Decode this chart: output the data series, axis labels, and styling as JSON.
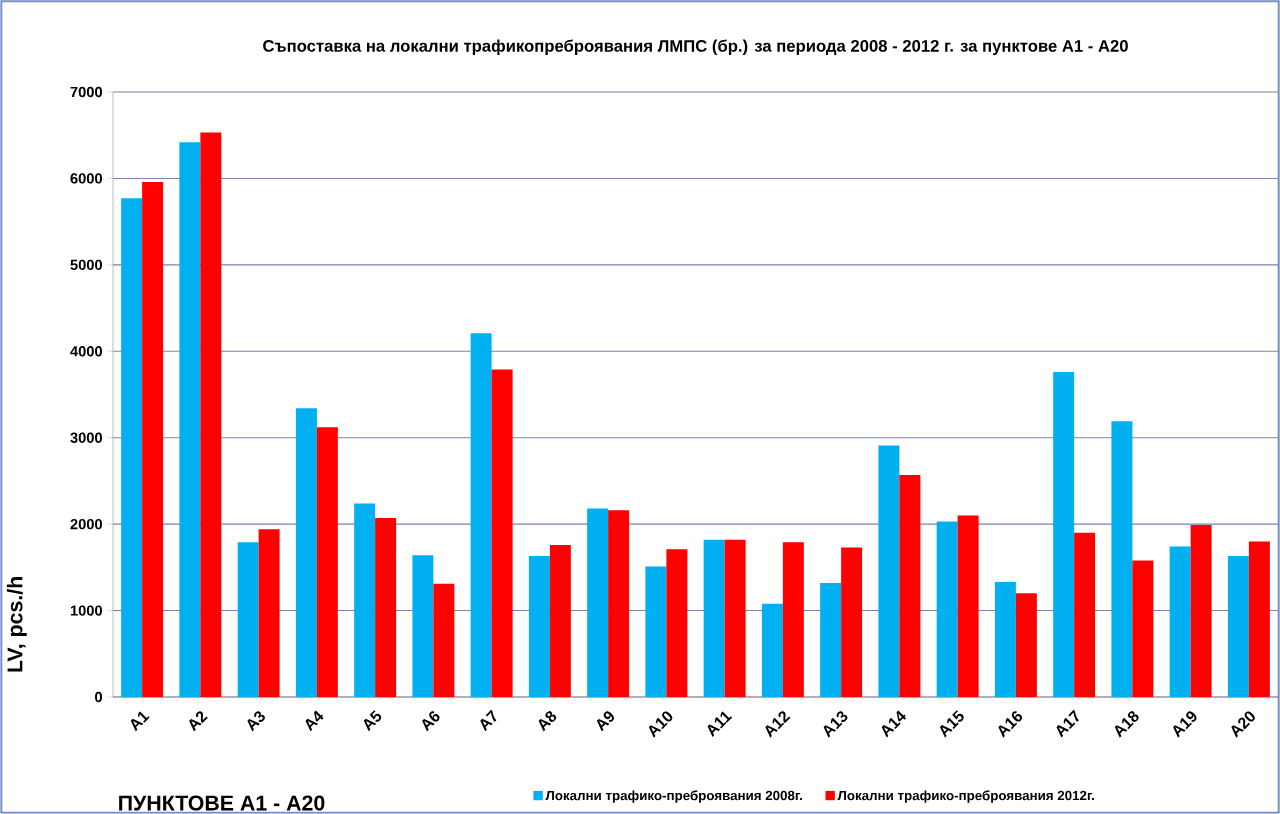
{
  "chart_data": {
    "type": "bar",
    "title": "Съпоставка на локални трафикопреброявания ЛМПС (бр.) за периода 2008 - 2012 г. за пунктове А1 - А20",
    "xlabel": "ПУНКТОВЕ А1 - А20",
    "ylabel": "LV, pcs./h",
    "categories": [
      "A1",
      "A2",
      "A3",
      "A4",
      "A5",
      "A6",
      "A7",
      "A8",
      "A9",
      "A10",
      "A11",
      "A12",
      "A13",
      "A14",
      "A15",
      "A16",
      "A17",
      "A18",
      "A19",
      "A20"
    ],
    "series": [
      {
        "name": "Локални трафико-преброявания  2008г.",
        "color": "#00b0f0",
        "values": [
          5770,
          6420,
          1790,
          3340,
          2240,
          1640,
          4210,
          1630,
          2180,
          1510,
          1820,
          1080,
          1320,
          2910,
          2030,
          1330,
          3760,
          3190,
          1740,
          1630
        ]
      },
      {
        "name": "Локални трафико-преброявания  2012г.",
        "color": "#ff0000",
        "values": [
          5960,
          6530,
          1940,
          3120,
          2070,
          1310,
          3790,
          1760,
          2160,
          1710,
          1820,
          1790,
          1730,
          2570,
          2100,
          1200,
          1900,
          1580,
          1990,
          1800
        ]
      }
    ],
    "ylim": [
      0,
      7000
    ],
    "yticks": [
      0,
      1000,
      2000,
      3000,
      4000,
      5000,
      6000,
      7000
    ],
    "grid": "y",
    "legend": "bottom"
  }
}
